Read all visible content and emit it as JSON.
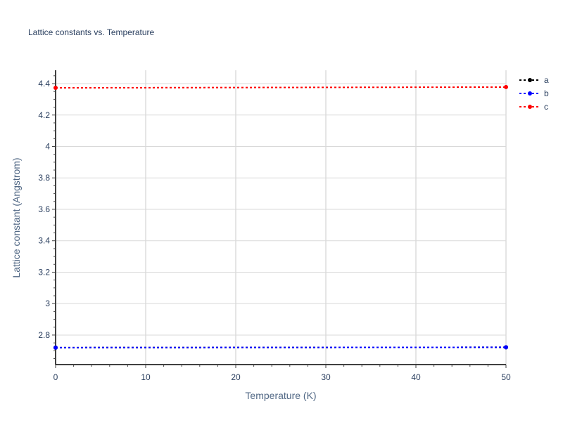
{
  "chart_data": {
    "type": "line",
    "title": "Lattice constants vs. Temperature",
    "xlabel": "Temperature (K)",
    "ylabel": "Lattice constant (Angstrom)",
    "xlim": [
      0,
      50
    ],
    "ylim": [
      2.612,
      4.485
    ],
    "xticks": [
      0,
      10,
      20,
      30,
      40,
      50
    ],
    "xtick_labels": [
      "0",
      "10",
      "20",
      "30",
      "40",
      "50"
    ],
    "yticks": [
      2.8,
      3.0,
      3.2,
      3.4,
      3.6,
      3.8,
      4.0,
      4.2,
      4.4
    ],
    "ytick_labels": [
      "2.8",
      "3",
      "3.2",
      "3.4",
      "3.6",
      "3.8",
      "4",
      "4.2",
      "4.4"
    ],
    "grid": true,
    "legend_placement": "top-right",
    "line_style": "dotted",
    "series": [
      {
        "name": "a",
        "color": "#000000",
        "x": [
          0,
          50
        ],
        "y": [
          2.72,
          2.722
        ]
      },
      {
        "name": "b",
        "color": "#0000ff",
        "x": [
          0,
          50
        ],
        "y": [
          2.72,
          2.722
        ]
      },
      {
        "name": "c",
        "color": "#ff0000",
        "x": [
          0,
          50
        ],
        "y": [
          4.373,
          4.378
        ]
      }
    ]
  }
}
